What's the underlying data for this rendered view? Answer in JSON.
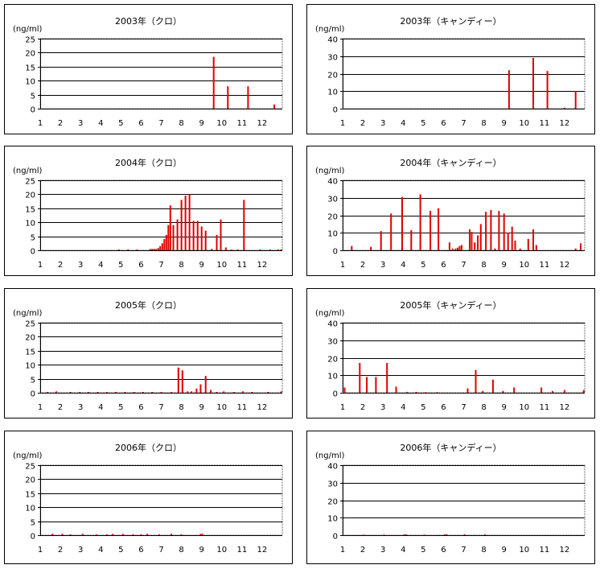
{
  "chart_data": [
    {
      "type": "bar",
      "title": "2003年（クロ）",
      "ylabel": "(ng/ml)",
      "ylim": [
        0,
        25
      ],
      "yticks": [
        0,
        5,
        10,
        15,
        20,
        25
      ],
      "xlim": [
        1,
        13
      ],
      "xticks": [
        "1",
        "2",
        "3",
        "4",
        "5",
        "6",
        "7",
        "8",
        "9",
        "10",
        "11",
        "12"
      ],
      "bar_color": "#e00000",
      "points": [
        {
          "x": 9.6,
          "y": 18.5
        },
        {
          "x": 10.3,
          "y": 8.0
        },
        {
          "x": 11.3,
          "y": 8.0
        },
        {
          "x": 12.6,
          "y": 1.5
        }
      ]
    },
    {
      "type": "bar",
      "title": "2003年（キャンディー）",
      "ylabel": "(ng/ml)",
      "ylim": [
        0,
        40
      ],
      "yticks": [
        0,
        10,
        20,
        30,
        40
      ],
      "xlim": [
        1,
        13
      ],
      "xticks": [
        "1",
        "2",
        "3",
        "4",
        "5",
        "6",
        "7",
        "8",
        "9",
        "10",
        "11",
        "12"
      ],
      "bar_color": "#e00000",
      "points": [
        {
          "x": 9.25,
          "y": 22
        },
        {
          "x": 10.45,
          "y": 29
        },
        {
          "x": 11.15,
          "y": 21.5
        },
        {
          "x": 12.0,
          "y": 0.5
        },
        {
          "x": 12.55,
          "y": 10
        }
      ]
    },
    {
      "type": "bar",
      "title": "2004年（クロ）",
      "ylabel": "(ng/ml)",
      "ylim": [
        0,
        25
      ],
      "yticks": [
        0,
        5,
        10,
        15,
        20,
        25
      ],
      "xlim": [
        1,
        13
      ],
      "xticks": [
        "1",
        "2",
        "3",
        "4",
        "5",
        "6",
        "7",
        "8",
        "9",
        "10",
        "11",
        "12"
      ],
      "bar_color": "#e00000",
      "points": [
        {
          "x": 4.9,
          "y": 0.3
        },
        {
          "x": 5.35,
          "y": 0.3
        },
        {
          "x": 5.8,
          "y": 0.3
        },
        {
          "x": 6.45,
          "y": 0.5
        },
        {
          "x": 6.55,
          "y": 0.5
        },
        {
          "x": 6.65,
          "y": 0.5
        },
        {
          "x": 6.75,
          "y": 0.5
        },
        {
          "x": 6.85,
          "y": 0.8
        },
        {
          "x": 6.95,
          "y": 1.5
        },
        {
          "x": 7.05,
          "y": 2.5
        },
        {
          "x": 7.15,
          "y": 4
        },
        {
          "x": 7.25,
          "y": 5.5
        },
        {
          "x": 7.35,
          "y": 9
        },
        {
          "x": 7.45,
          "y": 16
        },
        {
          "x": 7.6,
          "y": 9
        },
        {
          "x": 7.8,
          "y": 11
        },
        {
          "x": 8.0,
          "y": 18
        },
        {
          "x": 8.2,
          "y": 19.5
        },
        {
          "x": 8.4,
          "y": 20
        },
        {
          "x": 8.6,
          "y": 10.5
        },
        {
          "x": 8.8,
          "y": 10.5
        },
        {
          "x": 9.0,
          "y": 8.5
        },
        {
          "x": 9.2,
          "y": 7
        },
        {
          "x": 9.5,
          "y": 0.5
        },
        {
          "x": 9.75,
          "y": 5.5
        },
        {
          "x": 9.95,
          "y": 11
        },
        {
          "x": 10.2,
          "y": 1
        },
        {
          "x": 10.5,
          "y": 0.3
        },
        {
          "x": 10.8,
          "y": 0.3
        },
        {
          "x": 11.1,
          "y": 18
        },
        {
          "x": 11.9,
          "y": 0.3
        },
        {
          "x": 12.4,
          "y": 0.3
        },
        {
          "x": 12.8,
          "y": 0.3
        },
        {
          "x": 12.95,
          "y": 0.3
        }
      ]
    },
    {
      "type": "bar",
      "title": "2004年（キャンディー）",
      "ylabel": "(ng/ml)",
      "ylim": [
        0,
        40
      ],
      "yticks": [
        0,
        10,
        20,
        30,
        40
      ],
      "xlim": [
        1,
        13
      ],
      "xticks": [
        "1",
        "2",
        "3",
        "4",
        "5",
        "6",
        "7",
        "8",
        "9",
        "10",
        "11",
        "12"
      ],
      "bar_color": "#e00000",
      "points": [
        {
          "x": 1.45,
          "y": 2.5
        },
        {
          "x": 2.4,
          "y": 2
        },
        {
          "x": 2.9,
          "y": 11
        },
        {
          "x": 3.4,
          "y": 21
        },
        {
          "x": 3.95,
          "y": 30.5
        },
        {
          "x": 4.4,
          "y": 11.5
        },
        {
          "x": 4.85,
          "y": 32
        },
        {
          "x": 5.35,
          "y": 22.5
        },
        {
          "x": 5.75,
          "y": 24
        },
        {
          "x": 6.3,
          "y": 4.5
        },
        {
          "x": 6.45,
          "y": 1
        },
        {
          "x": 6.6,
          "y": 1
        },
        {
          "x": 6.7,
          "y": 1.5
        },
        {
          "x": 6.8,
          "y": 2.5
        },
        {
          "x": 6.9,
          "y": 3
        },
        {
          "x": 7.3,
          "y": 12
        },
        {
          "x": 7.4,
          "y": 10.5
        },
        {
          "x": 7.55,
          "y": 4.5
        },
        {
          "x": 7.7,
          "y": 8.5
        },
        {
          "x": 7.85,
          "y": 15
        },
        {
          "x": 8.1,
          "y": 22
        },
        {
          "x": 8.35,
          "y": 23
        },
        {
          "x": 8.55,
          "y": 1
        },
        {
          "x": 8.75,
          "y": 22.5
        },
        {
          "x": 9.0,
          "y": 21
        },
        {
          "x": 9.2,
          "y": 10
        },
        {
          "x": 9.4,
          "y": 13.5
        },
        {
          "x": 9.55,
          "y": 5.5
        },
        {
          "x": 9.8,
          "y": 1
        },
        {
          "x": 10.2,
          "y": 6.5
        },
        {
          "x": 10.45,
          "y": 12
        },
        {
          "x": 10.6,
          "y": 3
        },
        {
          "x": 12.55,
          "y": 1
        },
        {
          "x": 12.8,
          "y": 4
        }
      ]
    },
    {
      "type": "bar",
      "title": "2005年（クロ）",
      "ylabel": "(ng/ml)",
      "ylim": [
        0,
        25
      ],
      "yticks": [
        0,
        5,
        10,
        15,
        20,
        25
      ],
      "xlim": [
        1,
        13
      ],
      "xticks": [
        "1",
        "2",
        "3",
        "4",
        "5",
        "6",
        "7",
        "8",
        "9",
        "10",
        "11",
        "12"
      ],
      "bar_color": "#e00000",
      "points": [
        {
          "x": 1.35,
          "y": 0.3
        },
        {
          "x": 1.8,
          "y": 0.5
        },
        {
          "x": 2.5,
          "y": 0.3
        },
        {
          "x": 2.95,
          "y": 0.3
        },
        {
          "x": 3.4,
          "y": 0.3
        },
        {
          "x": 3.85,
          "y": 0.3
        },
        {
          "x": 4.3,
          "y": 0.3
        },
        {
          "x": 4.75,
          "y": 0.3
        },
        {
          "x": 5.2,
          "y": 0.3
        },
        {
          "x": 5.65,
          "y": 0.3
        },
        {
          "x": 6.1,
          "y": 0.3
        },
        {
          "x": 6.55,
          "y": 0.3
        },
        {
          "x": 7.0,
          "y": 0.3
        },
        {
          "x": 7.5,
          "y": 0.3
        },
        {
          "x": 7.85,
          "y": 9
        },
        {
          "x": 8.05,
          "y": 8
        },
        {
          "x": 8.3,
          "y": 0.5
        },
        {
          "x": 8.5,
          "y": 0.5
        },
        {
          "x": 8.75,
          "y": 1.5
        },
        {
          "x": 8.95,
          "y": 3
        },
        {
          "x": 9.2,
          "y": 6
        },
        {
          "x": 9.45,
          "y": 1
        },
        {
          "x": 9.75,
          "y": 0.3
        },
        {
          "x": 10.1,
          "y": 0.5
        },
        {
          "x": 10.6,
          "y": 0.3
        },
        {
          "x": 11.05,
          "y": 0.5
        },
        {
          "x": 11.5,
          "y": 0.3
        },
        {
          "x": 12.3,
          "y": 0.3
        },
        {
          "x": 12.95,
          "y": 0.5
        }
      ]
    },
    {
      "type": "bar",
      "title": "2005年（キャンディー）",
      "ylabel": "(ng/ml)",
      "ylim": [
        0,
        40
      ],
      "yticks": [
        0,
        10,
        20,
        30,
        40
      ],
      "xlim": [
        1,
        13
      ],
      "xticks": [
        "1",
        "2",
        "3",
        "4",
        "5",
        "6",
        "7",
        "8",
        "9",
        "10",
        "11",
        "12"
      ],
      "bar_color": "#e00000",
      "points": [
        {
          "x": 1.1,
          "y": 3
        },
        {
          "x": 1.85,
          "y": 17
        },
        {
          "x": 2.2,
          "y": 9
        },
        {
          "x": 2.65,
          "y": 9
        },
        {
          "x": 3.2,
          "y": 17
        },
        {
          "x": 3.65,
          "y": 3.5
        },
        {
          "x": 4.2,
          "y": 0.5
        },
        {
          "x": 4.65,
          "y": 0.5
        },
        {
          "x": 5.1,
          "y": 0.3
        },
        {
          "x": 5.7,
          "y": 0.3
        },
        {
          "x": 7.2,
          "y": 2.5
        },
        {
          "x": 7.6,
          "y": 13
        },
        {
          "x": 7.95,
          "y": 1
        },
        {
          "x": 8.45,
          "y": 7.5
        },
        {
          "x": 8.95,
          "y": 1
        },
        {
          "x": 9.5,
          "y": 3
        },
        {
          "x": 10.85,
          "y": 3
        },
        {
          "x": 11.4,
          "y": 1
        },
        {
          "x": 12.0,
          "y": 1.5
        },
        {
          "x": 12.95,
          "y": 1.5
        }
      ]
    },
    {
      "type": "bar",
      "title": "2006年（クロ）",
      "ylabel": "(ng/ml)",
      "ylim": [
        0,
        25
      ],
      "yticks": [
        0,
        5,
        10,
        15,
        20,
        25
      ],
      "xlim": [
        1,
        13
      ],
      "xticks": [
        "1",
        "2",
        "3",
        "4",
        "5",
        "6",
        "7",
        "8",
        "9",
        "10",
        "11",
        "12"
      ],
      "bar_color": "#e00000",
      "points": [
        {
          "x": 1.6,
          "y": 0.5
        },
        {
          "x": 2.1,
          "y": 0.5
        },
        {
          "x": 2.5,
          "y": 0.3
        },
        {
          "x": 3.1,
          "y": 0.5
        },
        {
          "x": 3.8,
          "y": 0.3
        },
        {
          "x": 4.3,
          "y": 0.3
        },
        {
          "x": 4.6,
          "y": 0.5
        },
        {
          "x": 5.1,
          "y": 0.5
        },
        {
          "x": 5.6,
          "y": 0.3
        },
        {
          "x": 6.0,
          "y": 0.3
        },
        {
          "x": 6.3,
          "y": 0.5
        },
        {
          "x": 6.9,
          "y": 0.3
        },
        {
          "x": 7.5,
          "y": 0.5
        },
        {
          "x": 8.0,
          "y": 0.3
        },
        {
          "x": 8.95,
          "y": 0.5
        },
        {
          "x": 9.05,
          "y": 0.5
        }
      ]
    },
    {
      "type": "bar",
      "title": "2006年（キャンディー）",
      "ylabel": "(ng/ml)",
      "ylim": [
        0,
        40
      ],
      "yticks": [
        0,
        10,
        20,
        30,
        40
      ],
      "xlim": [
        1,
        13
      ],
      "xticks": [
        "1",
        "2",
        "3",
        "4",
        "5",
        "6",
        "7",
        "8",
        "9",
        "10",
        "11",
        "12"
      ],
      "bar_color": "#e00000",
      "points": [
        {
          "x": 2.05,
          "y": 0.3
        },
        {
          "x": 3.05,
          "y": 0.3
        },
        {
          "x": 4.05,
          "y": 0.5
        },
        {
          "x": 4.15,
          "y": 0.5
        },
        {
          "x": 5.05,
          "y": 0.3
        },
        {
          "x": 6.05,
          "y": 0.5
        },
        {
          "x": 6.15,
          "y": 0.5
        },
        {
          "x": 7.05,
          "y": 0.5
        },
        {
          "x": 8.05,
          "y": 0.5
        }
      ]
    }
  ]
}
